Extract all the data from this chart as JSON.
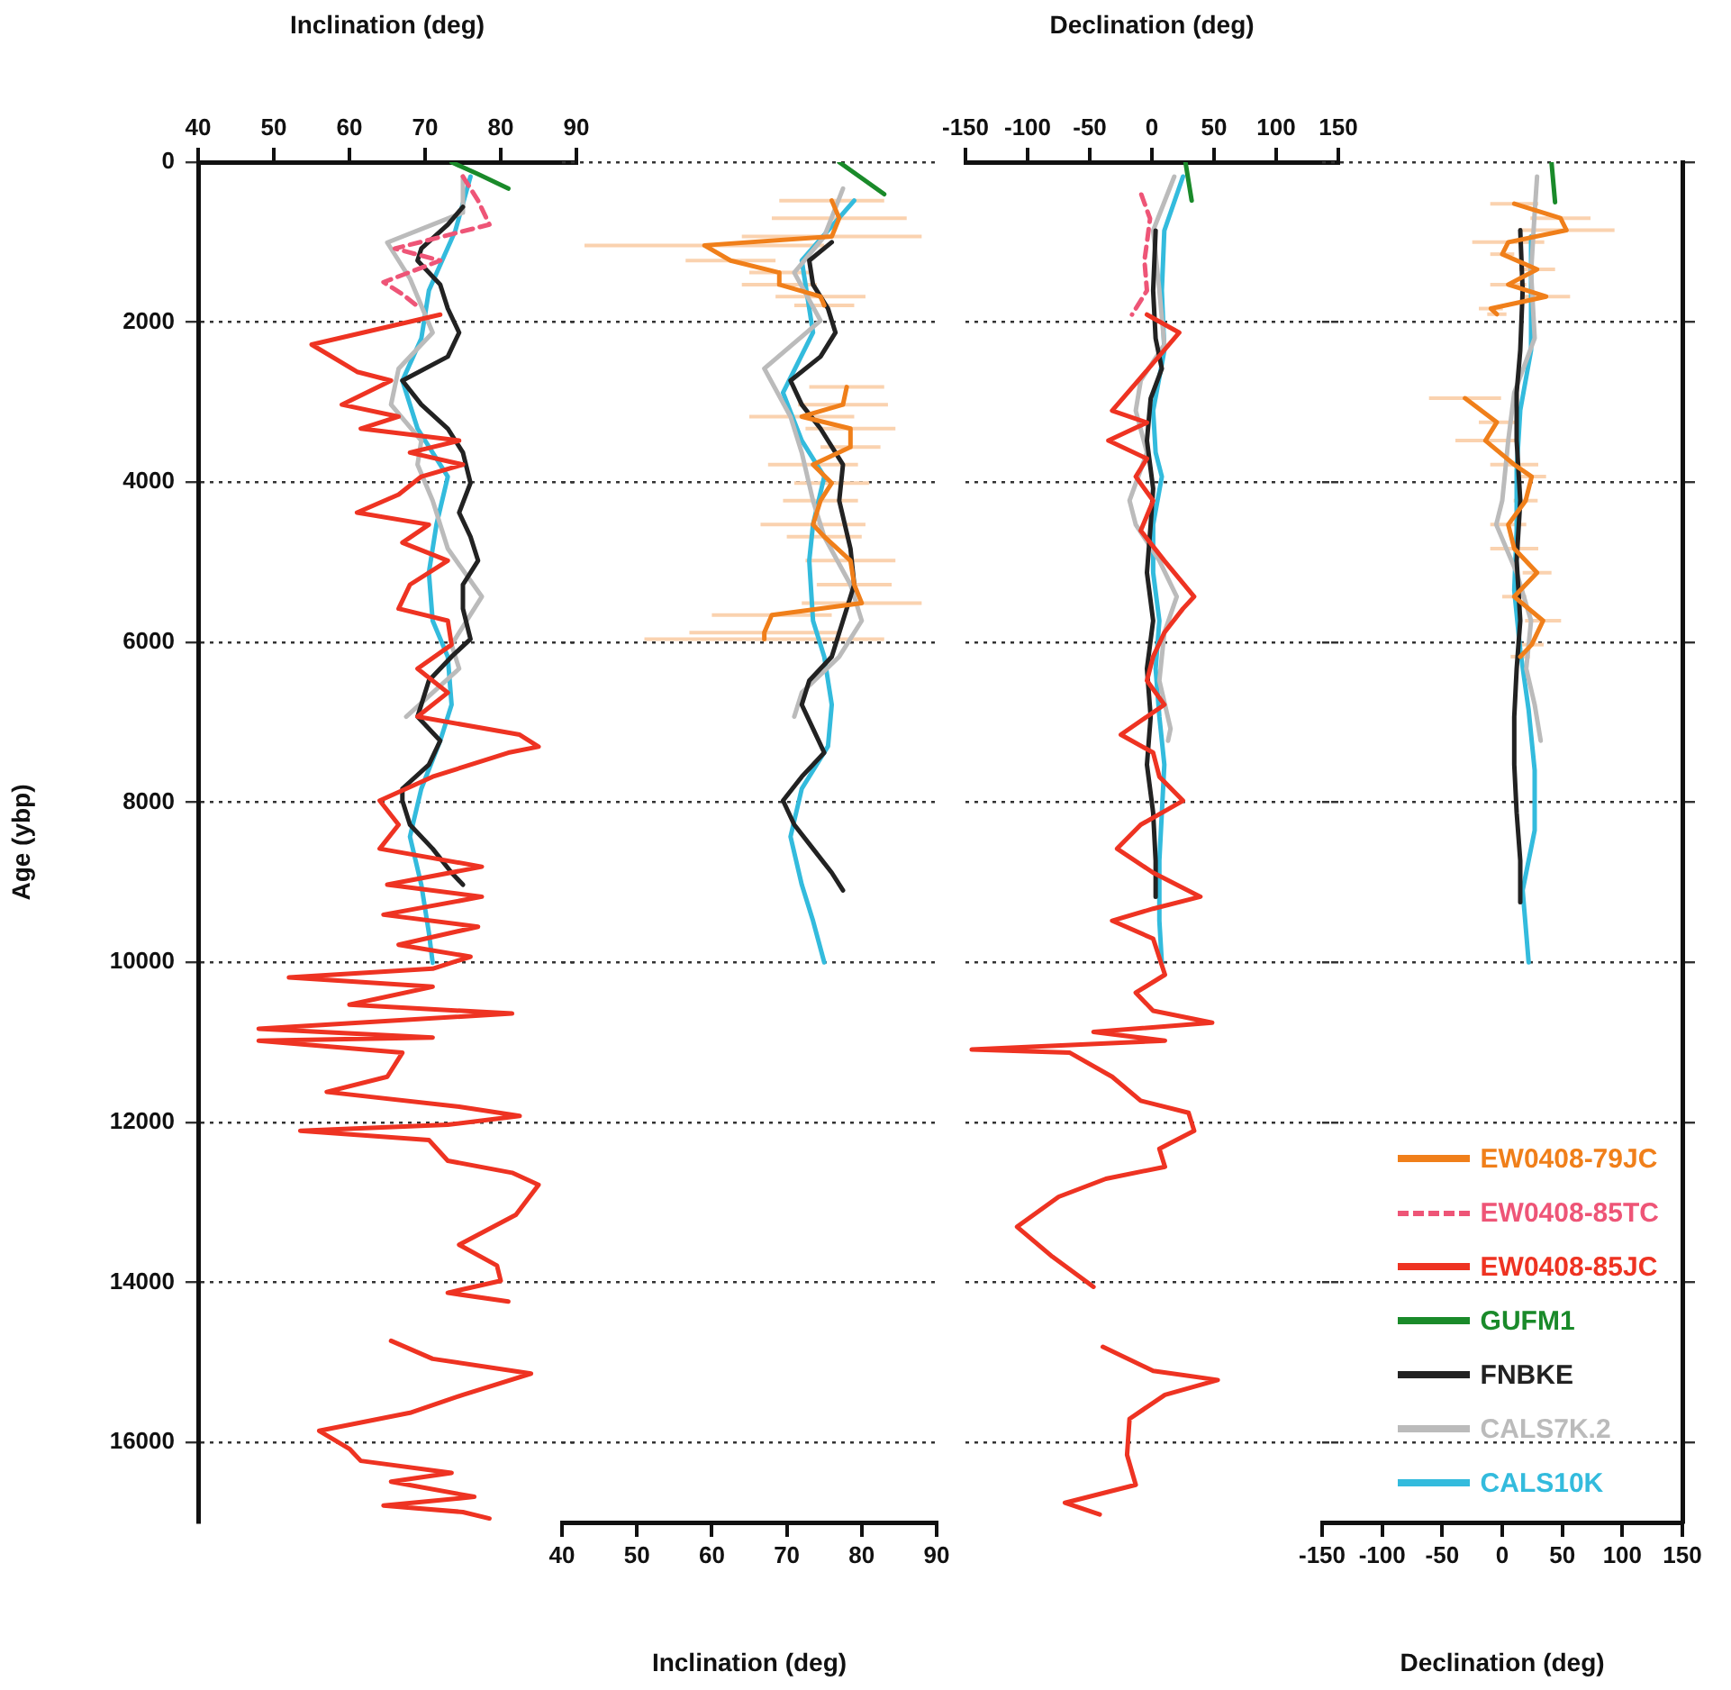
{
  "chart_data": [
    {
      "type": "line",
      "xlabel": "Inclination (deg)",
      "ylabel": "Age (ybp)",
      "xlim": [
        40,
        90
      ],
      "xticks": [
        40,
        50,
        60,
        70,
        80,
        90
      ],
      "ylim": [
        17000,
        0
      ],
      "yticks": [
        0,
        2000,
        4000,
        6000,
        8000,
        10000,
        12000,
        14000,
        16000
      ],
      "grid": "y",
      "marker": "none",
      "legend": "bottom right",
      "series": [
        {
          "name": "EW0408-85TC",
          "color": "#ee5577",
          "line_style": "dashed",
          "x": [
            75,
            77,
            78.5,
            66,
            72,
            64.5,
            67,
            69
          ],
          "values": [
            180,
            480,
            780,
            1080,
            1230,
            1500,
            1650,
            1800
          ]
        },
        {
          "name": "EW0408-85JC",
          "color": "#ee3322",
          "x": [
            72,
            55,
            61,
            65.5,
            59,
            66.5,
            61.5,
            74.5,
            68,
            75,
            69.5,
            66.5,
            61,
            70.5,
            67,
            73,
            68,
            66.5,
            73,
            73.5,
            69,
            73,
            69,
            82.5,
            85,
            81,
            71,
            64,
            66.5,
            64,
            77.5,
            65,
            77.5,
            64.5,
            77,
            66.5,
            76,
            71,
            52,
            71,
            60,
            81.5,
            48,
            71,
            48,
            67,
            65,
            57,
            74.5,
            82.5,
            73,
            53.5,
            70.5,
            73,
            81.5,
            85,
            82,
            74.5,
            79.5,
            80,
            73,
            81,
            null,
            65.5,
            71,
            84,
            75,
            68,
            56,
            60,
            61.5,
            73.5,
            65.5,
            76.5,
            64.5,
            75,
            78.5
          ],
          "values": [
            1905,
            2280,
            2620,
            2730,
            3030,
            3180,
            3330,
            3480,
            3630,
            3780,
            3930,
            4155,
            4380,
            4530,
            4755,
            4980,
            5280,
            5580,
            5730,
            6030,
            6330,
            6630,
            6930,
            7155,
            7305,
            7380,
            7680,
            7980,
            8280,
            8580,
            8805,
            9030,
            9180,
            9405,
            9555,
            9780,
            9930,
            10080,
            10190,
            10305,
            10530,
            10640,
            10830,
            10940,
            10980,
            11130,
            11430,
            11620,
            11805,
            11920,
            12030,
            12105,
            12220,
            12480,
            12630,
            12780,
            13155,
            13530,
            13790,
            13980,
            14130,
            14240,
            null,
            14730,
            14955,
            15140,
            15405,
            15630,
            15855,
            16080,
            16230,
            16380,
            16490,
            16680,
            16790,
            16870,
            16950
          ]
        },
        {
          "name": "GUFM1",
          "color": "#1a8a2a",
          "x": [
            73.5,
            77,
            81
          ],
          "values": [
            0,
            150,
            330
          ]
        },
        {
          "name": "FNBKE",
          "color": "#222222",
          "x": [
            75,
            73,
            69.5,
            69,
            72,
            73,
            74.5,
            73,
            67,
            69.5,
            73,
            75,
            76,
            74.5,
            76,
            77,
            75,
            75,
            76,
            73.5,
            70.5,
            69,
            72,
            70.5,
            67,
            67,
            68,
            71,
            73.5,
            75
          ],
          "values": [
            560,
            780,
            1080,
            1230,
            1530,
            1830,
            2130,
            2430,
            2730,
            3030,
            3330,
            3630,
            4010,
            4380,
            4680,
            4980,
            5280,
            5580,
            5960,
            6180,
            6480,
            6930,
            7230,
            7530,
            7830,
            7980,
            8280,
            8580,
            8880,
            9030
          ]
        },
        {
          "name": "CALS7K.2",
          "color": "#bbbbbb",
          "x": [
            75,
            75,
            65,
            68,
            71,
            66.5,
            65.5,
            69.5,
            69,
            71,
            73,
            77.5,
            73.5,
            74.5,
            67.5
          ],
          "values": [
            180,
            630,
            1005,
            1455,
            2130,
            2580,
            3030,
            3480,
            3780,
            4230,
            4830,
            5430,
            6030,
            6330,
            6930
          ]
        },
        {
          "name": "CALS10K",
          "color": "#33bbdd",
          "x": [
            76,
            74,
            70.5,
            69.5,
            67,
            69,
            73,
            71.5,
            70.5,
            71,
            73,
            73.5,
            72,
            69.5,
            68,
            69.5,
            70.5,
            71
          ],
          "values": [
            180,
            855,
            1605,
            2205,
            2730,
            3330,
            3930,
            4530,
            5130,
            5730,
            6180,
            6780,
            7230,
            7830,
            8430,
            9030,
            9630,
            10005
          ]
        }
      ]
    },
    {
      "type": "line",
      "xlabel": "Inclination (deg)",
      "xlim": [
        40,
        90
      ],
      "xticks": [
        40,
        50,
        60,
        70,
        80,
        90
      ],
      "ylim": [
        17000,
        0
      ],
      "yticks": [
        0,
        2000,
        4000,
        6000,
        8000,
        10000,
        12000,
        14000,
        16000
      ],
      "tick_labels": "x",
      "grid": "y",
      "marker": "none",
      "series": [
        {
          "name": "EW0408-79JC",
          "color": "#f07f1a",
          "x": [
            76,
            77,
            76,
            59,
            62.5,
            69,
            69,
            74.5,
            75,
            null,
            78,
            77.5,
            72,
            78.5,
            78.5,
            73.5,
            76,
            74.5,
            73.5,
            75,
            78.5,
            79,
            80,
            68,
            67,
            67
          ],
          "values": [
            480,
            700,
            930,
            1040,
            1230,
            1380,
            1530,
            1680,
            1790,
            null,
            2810,
            3030,
            3180,
            3330,
            3560,
            3780,
            4010,
            4230,
            4530,
            4680,
            4980,
            5280,
            5510,
            5660,
            5880,
            5960
          ],
          "xerrors": [
            7,
            9,
            12,
            16,
            6,
            4,
            5,
            6,
            4,
            null,
            5,
            6,
            7,
            6,
            4,
            6,
            5,
            5,
            7,
            5,
            6,
            5,
            8,
            8,
            10,
            16
          ]
        },
        {
          "color": "#1a8a2a",
          "x": [
            77,
            80,
            83
          ],
          "values": [
            0,
            200,
            400
          ]
        },
        {
          "color": "#222222",
          "x": [
            76,
            73,
            73.5,
            75.5,
            76.5,
            74.5,
            70.5,
            72,
            74.5,
            77.5,
            77,
            78.5,
            79,
            77.5,
            76,
            73,
            72,
            73.5,
            75,
            72,
            69.5,
            71,
            73.5,
            76,
            77.5
          ],
          "values": [
            1000,
            1230,
            1530,
            1830,
            2130,
            2430,
            2730,
            3030,
            3330,
            3780,
            4230,
            4830,
            5280,
            5730,
            6180,
            6480,
            6780,
            7080,
            7380,
            7680,
            7980,
            8280,
            8580,
            8880,
            9100
          ]
        },
        {
          "color": "#bbbbbb",
          "x": [
            77.5,
            75,
            71,
            74.5,
            67,
            70.5,
            72,
            73.5,
            75,
            78.5,
            80,
            77,
            72,
            71
          ],
          "values": [
            330,
            930,
            1380,
            1980,
            2580,
            3180,
            3630,
            4230,
            4680,
            5280,
            5730,
            6180,
            6630,
            6930
          ]
        },
        {
          "color": "#33bbdd",
          "x": [
            79,
            72,
            73.5,
            69.5,
            72,
            75,
            73.5,
            73,
            73.5,
            75,
            76,
            75.5,
            72,
            70.5,
            72,
            73.5,
            75
          ],
          "values": [
            480,
            1230,
            2130,
            2880,
            3480,
            3930,
            4530,
            4980,
            5730,
            6180,
            6780,
            7300,
            7830,
            8430,
            9030,
            9480,
            10000
          ]
        }
      ]
    },
    {
      "type": "line",
      "xlabel": "Declination (deg)",
      "xlim": [
        -150,
        150
      ],
      "xticks": [
        -150,
        -100,
        -50,
        0,
        50,
        100,
        150
      ],
      "yticks": [
        0,
        2000,
        4000,
        6000,
        8000,
        10000,
        12000,
        14000,
        16000
      ],
      "tick_labels": "x",
      "grid": "y",
      "marker": "none",
      "series": [
        {
          "color": "#ee5577",
          "line_style": "dashed",
          "x": [
            -8.5,
            -1.5,
            -4,
            -6,
            -4,
            -16
          ],
          "values": [
            405,
            705,
            1005,
            1230,
            1605,
            1905
          ]
        },
        {
          "color": "#ee3322",
          "x": [
            -4,
            22,
            -11,
            -32,
            -4,
            -35,
            -4,
            -13,
            1,
            -9,
            10,
            34,
            25,
            10,
            1,
            -4,
            10,
            -25,
            1,
            6,
            25,
            -9,
            -28,
            1,
            39,
            1,
            -32,
            1,
            10.5,
            -13,
            1,
            48.5,
            -47,
            10.5,
            -145,
            -66,
            -32,
            -9,
            29.5,
            34,
            6,
            10.5,
            -37,
            -75,
            -108.5,
            -80,
            -47,
            null,
            -39.5,
            1,
            53,
            10.5,
            -18,
            -20,
            -13,
            -70,
            -42
          ],
          "values": [
            1905,
            2130,
            2730,
            3105,
            3255,
            3480,
            3705,
            3930,
            4230,
            4605,
            4980,
            5430,
            5580,
            5880,
            6180,
            6480,
            6780,
            7155,
            7380,
            7680,
            7980,
            8280,
            8580,
            8880,
            9180,
            9330,
            9480,
            9705,
            10155,
            10380,
            10605,
            10755,
            10870,
            10980,
            11090,
            11130,
            11430,
            11730,
            11880,
            12105,
            12330,
            12555,
            12705,
            12930,
            13305,
            13680,
            14055,
            null,
            14805,
            15105,
            15220,
            15405,
            15705,
            16155,
            16530,
            16755,
            16900
          ]
        },
        {
          "color": "#1a8a2a",
          "x": [
            27,
            32
          ],
          "values": [
            0,
            480
          ]
        },
        {
          "color": "#222222",
          "x": [
            3,
            1,
            3,
            8,
            -1,
            -4,
            1,
            -1,
            -4,
            1,
            -4,
            -1,
            -4,
            1,
            3,
            3
          ],
          "values": [
            855,
            1605,
            2205,
            2580,
            2955,
            3480,
            4080,
            4530,
            5130,
            5730,
            6330,
            6930,
            7530,
            8130,
            8730,
            9180
          ]
        },
        {
          "color": "#bbbbbb",
          "x": [
            18,
            1,
            6,
            10,
            -9,
            -13,
            -4,
            -18,
            -13,
            6,
            20,
            10,
            6,
            15,
            13
          ],
          "values": [
            180,
            855,
            1605,
            2280,
            2730,
            3105,
            3630,
            4230,
            4530,
            4980,
            5430,
            5880,
            6480,
            7080,
            7230
          ]
        },
        {
          "color": "#33bbdd",
          "x": [
            25,
            10,
            8,
            10,
            1,
            3,
            8,
            1,
            1,
            6,
            3,
            6,
            10,
            8,
            6,
            6,
            8
          ],
          "values": [
            180,
            855,
            1605,
            2355,
            3105,
            3630,
            3930,
            4530,
            5130,
            5730,
            6330,
            6930,
            7530,
            8130,
            8730,
            9480,
            10005
          ]
        }
      ]
    },
    {
      "type": "line",
      "xlabel": "Declination (deg)",
      "xlim": [
        -150,
        150
      ],
      "xticks": [
        -150,
        -100,
        -50,
        0,
        50,
        100,
        150
      ],
      "ylim": [
        17000,
        0
      ],
      "yticks": [
        {
          "value": 0,
          "label": null
        },
        {
          "value": 2000,
          "label": null
        },
        {
          "value": 4000,
          "label": null
        },
        {
          "value": 6000,
          "label": null
        },
        {
          "value": 8000,
          "label": null
        },
        {
          "value": 10000,
          "label": null
        },
        {
          "value": 12000,
          "label": null
        },
        {
          "value": 14000,
          "label": null
        },
        {
          "value": 16000,
          "label": null
        }
      ],
      "tick_labels": "x",
      "grid": "y",
      "marker": "none",
      "series": [
        {
          "color": "#f07f1a",
          "x": [
            10,
            48.5,
            53.5,
            5,
            0,
            29,
            5,
            36.5,
            -9.5,
            -4.5,
            null,
            -31,
            -4.5,
            -14,
            10,
            24.5,
            19.5,
            5,
            10,
            29,
            10,
            34,
            24.5,
            15
          ],
          "values": [
            520,
            700,
            850,
            1000,
            1150,
            1340,
            1530,
            1680,
            1830,
            1900,
            null,
            2950,
            3250,
            3480,
            3780,
            3930,
            4230,
            4530,
            4830,
            5130,
            5430,
            5730,
            6030,
            6180
          ],
          "xerrors": [
            20,
            25,
            40,
            30,
            10,
            15,
            15,
            20,
            10,
            8,
            null,
            30,
            15,
            25,
            20,
            12,
            10,
            15,
            20,
            12,
            10,
            15,
            10,
            8
          ]
        },
        {
          "color": "#1a8a2a",
          "x": [
            41,
            44
          ],
          "values": [
            0,
            500
          ]
        },
        {
          "color": "#222222",
          "x": [
            15,
            17,
            15,
            12,
            12,
            15,
            12,
            15,
            12,
            10,
            10,
            12,
            15,
            15
          ],
          "values": [
            850,
            1600,
            2350,
            2880,
            3480,
            4230,
            4980,
            5730,
            6330,
            6930,
            7530,
            8130,
            8730,
            9250
          ]
        },
        {
          "color": "#bbbbbb",
          "x": [
            29,
            27,
            24,
            27,
            10,
            5,
            0,
            -5,
            12,
            24,
            20,
            27,
            32
          ],
          "values": [
            180,
            630,
            1380,
            2200,
            2880,
            3480,
            4230,
            4530,
            5130,
            5730,
            6330,
            6780,
            7230
          ]
        },
        {
          "color": "#33bbdd",
          "x": [
            24,
            24,
            15,
            12,
            12,
            10,
            15,
            22,
            27,
            27,
            17,
            22
          ],
          "values": [
            930,
            2350,
            3100,
            3850,
            4600,
            5350,
            6100,
            6850,
            7600,
            8350,
            9100,
            10000
          ]
        }
      ]
    }
  ]
}
